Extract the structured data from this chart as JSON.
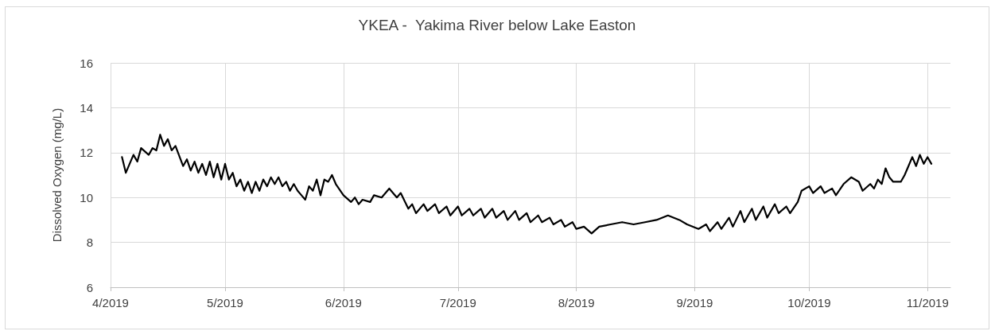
{
  "chart_data": {
    "type": "line",
    "title": "YKEA -  Yakima River below Lake Easton",
    "ylabel": "Dissolved Oxygen (mg/L)",
    "xlim": [
      "2019-04-01",
      "2019-11-07"
    ],
    "xticks": [
      {
        "value": "2019-04-01",
        "label": "4/2019"
      },
      {
        "value": "2019-05-01",
        "label": "5/2019"
      },
      {
        "value": "2019-06-01",
        "label": "6/2019"
      },
      {
        "value": "2019-07-01",
        "label": "7/2019"
      },
      {
        "value": "2019-08-01",
        "label": "8/2019"
      },
      {
        "value": "2019-09-01",
        "label": "9/2019"
      },
      {
        "value": "2019-10-01",
        "label": "10/2019"
      },
      {
        "value": "2019-11-01",
        "label": "11/2019"
      }
    ],
    "ylim": [
      6,
      16
    ],
    "yticks": [
      6,
      8,
      10,
      12,
      14,
      16
    ],
    "grid": true,
    "marker": "none",
    "line_style": "solid",
    "series": [
      {
        "color": "#000000",
        "x": [
          "2019-04-04",
          "2019-04-05",
          "2019-04-07",
          "2019-04-08",
          "2019-04-09",
          "2019-04-11",
          "2019-04-12",
          "2019-04-13",
          "2019-04-14",
          "2019-04-15",
          "2019-04-16",
          "2019-04-17",
          "2019-04-18",
          "2019-04-20",
          "2019-04-21",
          "2019-04-22",
          "2019-04-23",
          "2019-04-24",
          "2019-04-25",
          "2019-04-26",
          "2019-04-27",
          "2019-04-28",
          "2019-04-29",
          "2019-04-30",
          "2019-05-01",
          "2019-05-02",
          "2019-05-03",
          "2019-05-04",
          "2019-05-05",
          "2019-05-06",
          "2019-05-07",
          "2019-05-08",
          "2019-05-09",
          "2019-05-10",
          "2019-05-11",
          "2019-05-12",
          "2019-05-13",
          "2019-05-14",
          "2019-05-15",
          "2019-05-16",
          "2019-05-17",
          "2019-05-18",
          "2019-05-19",
          "2019-05-20",
          "2019-05-21",
          "2019-05-22",
          "2019-05-23",
          "2019-05-24",
          "2019-05-25",
          "2019-05-26",
          "2019-05-27",
          "2019-05-28",
          "2019-05-29",
          "2019-05-30",
          "2019-06-01",
          "2019-06-03",
          "2019-06-04",
          "2019-06-05",
          "2019-06-06",
          "2019-06-08",
          "2019-06-09",
          "2019-06-11",
          "2019-06-13",
          "2019-06-15",
          "2019-06-16",
          "2019-06-18",
          "2019-06-19",
          "2019-06-20",
          "2019-06-22",
          "2019-06-23",
          "2019-06-25",
          "2019-06-26",
          "2019-06-28",
          "2019-06-29",
          "2019-07-01",
          "2019-07-02",
          "2019-07-04",
          "2019-07-05",
          "2019-07-07",
          "2019-07-08",
          "2019-07-10",
          "2019-07-11",
          "2019-07-13",
          "2019-07-14",
          "2019-07-16",
          "2019-07-17",
          "2019-07-19",
          "2019-07-20",
          "2019-07-22",
          "2019-07-23",
          "2019-07-25",
          "2019-07-26",
          "2019-07-28",
          "2019-07-29",
          "2019-07-31",
          "2019-08-01",
          "2019-08-03",
          "2019-08-05",
          "2019-08-07",
          "2019-08-10",
          "2019-08-13",
          "2019-08-16",
          "2019-08-19",
          "2019-08-22",
          "2019-08-25",
          "2019-08-28",
          "2019-08-30",
          "2019-09-02",
          "2019-09-04",
          "2019-09-05",
          "2019-09-07",
          "2019-09-08",
          "2019-09-10",
          "2019-09-11",
          "2019-09-13",
          "2019-09-14",
          "2019-09-16",
          "2019-09-17",
          "2019-09-19",
          "2019-09-20",
          "2019-09-22",
          "2019-09-23",
          "2019-09-25",
          "2019-09-26",
          "2019-09-28",
          "2019-09-29",
          "2019-10-01",
          "2019-10-02",
          "2019-10-04",
          "2019-10-05",
          "2019-10-07",
          "2019-10-08",
          "2019-10-10",
          "2019-10-12",
          "2019-10-14",
          "2019-10-15",
          "2019-10-17",
          "2019-10-18",
          "2019-10-19",
          "2019-10-20",
          "2019-10-21",
          "2019-10-22",
          "2019-10-23",
          "2019-10-25",
          "2019-10-26",
          "2019-10-27",
          "2019-10-28",
          "2019-10-29",
          "2019-10-30",
          "2019-10-31",
          "2019-11-01",
          "2019-11-02"
        ],
        "values": [
          11.8,
          11.1,
          11.9,
          11.6,
          12.2,
          11.9,
          12.2,
          12.1,
          12.8,
          12.3,
          12.6,
          12.1,
          12.3,
          11.4,
          11.7,
          11.2,
          11.6,
          11.1,
          11.5,
          11.0,
          11.6,
          10.9,
          11.5,
          10.8,
          11.5,
          10.8,
          11.1,
          10.5,
          10.8,
          10.3,
          10.7,
          10.2,
          10.7,
          10.3,
          10.8,
          10.5,
          10.9,
          10.6,
          10.9,
          10.5,
          10.7,
          10.3,
          10.6,
          10.3,
          10.1,
          9.9,
          10.5,
          10.3,
          10.8,
          10.1,
          10.8,
          10.7,
          11.0,
          10.6,
          10.1,
          9.8,
          10.0,
          9.7,
          9.9,
          9.8,
          10.1,
          10.0,
          10.4,
          10.0,
          10.2,
          9.5,
          9.7,
          9.3,
          9.7,
          9.4,
          9.7,
          9.3,
          9.6,
          9.2,
          9.6,
          9.2,
          9.5,
          9.2,
          9.5,
          9.1,
          9.5,
          9.1,
          9.4,
          9.0,
          9.4,
          9.0,
          9.3,
          8.9,
          9.2,
          8.9,
          9.1,
          8.8,
          9.0,
          8.7,
          8.9,
          8.6,
          8.7,
          8.4,
          8.7,
          8.8,
          8.9,
          8.8,
          8.9,
          9.0,
          9.2,
          9.0,
          8.8,
          8.6,
          8.8,
          8.5,
          8.9,
          8.6,
          9.1,
          8.7,
          9.4,
          8.9,
          9.5,
          9.0,
          9.6,
          9.1,
          9.7,
          9.3,
          9.6,
          9.3,
          9.8,
          10.3,
          10.5,
          10.2,
          10.5,
          10.2,
          10.4,
          10.1,
          10.6,
          10.9,
          10.7,
          10.3,
          10.6,
          10.4,
          10.8,
          10.6,
          11.3,
          10.9,
          10.7,
          10.7,
          11.0,
          11.4,
          11.8,
          11.4,
          11.9,
          11.5,
          11.8,
          11.5
        ]
      }
    ]
  }
}
